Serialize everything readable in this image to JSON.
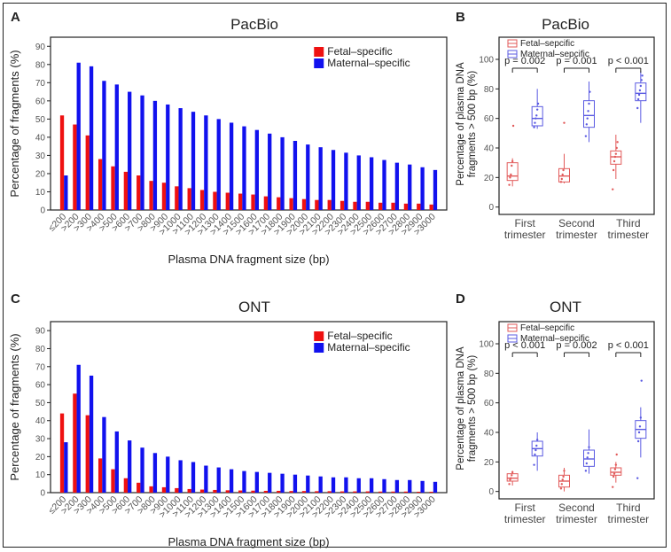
{
  "figure": {
    "panels": {
      "A": {
        "letter": "A",
        "title": "PacBio"
      },
      "B": {
        "letter": "B",
        "title": "PacBio"
      },
      "C": {
        "letter": "C",
        "title": "ONT"
      },
      "D": {
        "letter": "D",
        "title": "ONT"
      }
    }
  },
  "colors": {
    "fetal": "#ee1111",
    "maternal": "#1111ee",
    "fetal_box": "#e25a5a",
    "maternal_box": "#5a5ae2"
  },
  "chart_data": [
    {
      "id": "A",
      "type": "bar",
      "title": "PacBio",
      "xlabel": "Plasma DNA fragment size (bp)",
      "ylabel": "Percentage of fragments (%)",
      "ylim": [
        0,
        95
      ],
      "yticks": [
        0,
        10,
        20,
        30,
        40,
        50,
        60,
        70,
        80,
        90
      ],
      "legend_position": "top-right",
      "categories": [
        "≤200",
        ">200",
        ">300",
        ">400",
        ">500",
        ">600",
        ">700",
        ">800",
        ">900",
        ">1000",
        ">1100",
        ">1200",
        ">1300",
        ">1400",
        ">1500",
        ">1600",
        ">1700",
        ">1800",
        ">1900",
        ">2000",
        ">2100",
        ">2200",
        ">2300",
        ">2400",
        ">2500",
        ">2600",
        ">2700",
        ">2800",
        ">2900",
        ">3000"
      ],
      "series": [
        {
          "name": "Fetal–specific",
          "values": [
            52,
            47,
            41,
            28,
            24,
            21,
            19,
            16,
            15,
            13,
            12,
            11,
            10,
            9.5,
            9,
            8.5,
            7.5,
            7,
            6.5,
            6,
            5.5,
            5.5,
            5,
            4.5,
            4.5,
            4,
            4,
            3.5,
            3.5,
            3
          ]
        },
        {
          "name": "Maternal–specific",
          "values": [
            19,
            81,
            79,
            71,
            69,
            65,
            63,
            60,
            58,
            56,
            54,
            52,
            50,
            48,
            46,
            44,
            42,
            40,
            38,
            36,
            34.5,
            33,
            31.5,
            30,
            29,
            27.5,
            26,
            25,
            23.5,
            22
          ]
        }
      ]
    },
    {
      "id": "B",
      "type": "box",
      "title": "PacBio",
      "ylabel": "Percentage of plasma DNA fragments > 500 bp (%)",
      "ylim": [
        -5,
        115
      ],
      "yticks": [
        0,
        20,
        40,
        60,
        80,
        100
      ],
      "legend": [
        "Fetal–sepcific",
        "Maternal–sepcific"
      ],
      "groups": [
        {
          "label": [
            "First",
            "trimester"
          ],
          "pvalue": "p = 0.002",
          "fetal": {
            "min": 14,
            "q1": 18,
            "median": 21,
            "q3": 30,
            "max": 33,
            "points": [
              15,
              20,
              22,
              28,
              31,
              55
            ]
          },
          "maternal": {
            "min": 53,
            "q1": 55,
            "median": 60,
            "q3": 68,
            "max": 80,
            "points": [
              54,
              57,
              60,
              62,
              66,
              70
            ]
          }
        },
        {
          "label": [
            "Second",
            "trimester"
          ],
          "pvalue": "p = 0.001",
          "fetal": {
            "min": 16,
            "q1": 17,
            "median": 21,
            "q3": 26,
            "max": 36,
            "points": [
              17,
              19,
              22,
              25,
              57
            ]
          },
          "maternal": {
            "min": 44,
            "q1": 54,
            "median": 62,
            "q3": 72,
            "max": 85,
            "points": [
              48,
              56,
              60,
              65,
              70,
              78
            ]
          }
        },
        {
          "label": [
            "Third",
            "trimester"
          ],
          "pvalue": "p < 0.001",
          "fetal": {
            "min": 19,
            "q1": 29,
            "median": 34,
            "q3": 38,
            "max": 49,
            "points": [
              12,
              25,
              31,
              34,
              36,
              40,
              44
            ]
          },
          "maternal": {
            "min": 57,
            "q1": 72,
            "median": 77,
            "q3": 84,
            "max": 92,
            "points": [
              67,
              73,
              76,
              79,
              82,
              86,
              89
            ]
          }
        }
      ]
    },
    {
      "id": "C",
      "type": "bar",
      "title": "ONT",
      "xlabel": "Plasma DNA fragment size (bp)",
      "ylabel": "Percentage of fragments (%)",
      "ylim": [
        0,
        95
      ],
      "yticks": [
        0,
        10,
        20,
        30,
        40,
        50,
        60,
        70,
        80,
        90
      ],
      "legend_position": "top-right",
      "categories": [
        "≤200",
        ">200",
        ">300",
        ">400",
        ">500",
        ">600",
        ">700",
        ">800",
        ">900",
        ">1000",
        ">1100",
        ">1200",
        ">1300",
        ">1400",
        ">1500",
        ">1600",
        ">1700",
        ">1800",
        ">1900",
        ">2000",
        ">2100",
        ">2200",
        ">2300",
        ">2400",
        ">2500",
        ">2600",
        ">2700",
        ">2800",
        ">2900",
        ">3000"
      ],
      "series": [
        {
          "name": "Fetal–specific",
          "values": [
            44,
            55,
            43,
            19,
            13,
            8,
            5.5,
            3.5,
            3,
            2.5,
            2,
            1.7,
            1.5,
            1.3,
            1.2,
            1.1,
            1,
            1,
            0.9,
            0.9,
            0.8,
            0.8,
            0.7,
            0.7,
            0.7,
            0.6,
            0.6,
            0.6,
            0.5,
            0.5
          ]
        },
        {
          "name": "Maternal–specific",
          "values": [
            28,
            71,
            65,
            42,
            34,
            29,
            25,
            22,
            20,
            18,
            17,
            15,
            14,
            13,
            12,
            11.5,
            11,
            10.5,
            10,
            9.5,
            9,
            8.5,
            8.5,
            8,
            8,
            7.5,
            7,
            7,
            6.5,
            6
          ]
        }
      ]
    },
    {
      "id": "D",
      "type": "box",
      "title": "ONT",
      "ylabel": "Percentage of plasma DNA fragments > 500 bp (%)",
      "ylim": [
        -5,
        115
      ],
      "yticks": [
        0,
        20,
        40,
        60,
        80,
        100
      ],
      "legend": [
        "Fetal–sepcific",
        "Maternal–sepcific"
      ],
      "groups": [
        {
          "label": [
            "First",
            "trimester"
          ],
          "pvalue": "p < 0.001",
          "fetal": {
            "min": 4,
            "q1": 7,
            "median": 9,
            "q3": 12,
            "max": 14,
            "points": [
              5,
              8,
              9,
              11,
              13
            ]
          },
          "maternal": {
            "min": 14,
            "q1": 24,
            "median": 29,
            "q3": 34,
            "max": 40,
            "points": [
              18,
              25,
              28,
              31,
              35
            ]
          }
        },
        {
          "label": [
            "Second",
            "trimester"
          ],
          "pvalue": "p = 0.002",
          "fetal": {
            "min": 0,
            "q1": 3,
            "median": 7,
            "q3": 11,
            "max": 16,
            "points": [
              2,
              5,
              8,
              10,
              14
            ]
          },
          "maternal": {
            "min": 12,
            "q1": 17,
            "median": 22,
            "q3": 28,
            "max": 42,
            "points": [
              14,
              19,
              23,
              26,
              30
            ]
          }
        },
        {
          "label": [
            "Third",
            "trimester"
          ],
          "pvalue": "p < 0.001",
          "fetal": {
            "min": 6,
            "q1": 11,
            "median": 13,
            "q3": 16,
            "max": 20,
            "points": [
              3,
              10,
              12,
              15,
              18,
              25
            ]
          },
          "maternal": {
            "min": 23,
            "q1": 36,
            "median": 42,
            "q3": 48,
            "max": 57,
            "points": [
              9,
              34,
              40,
              44,
              50,
              75
            ]
          }
        }
      ]
    }
  ]
}
